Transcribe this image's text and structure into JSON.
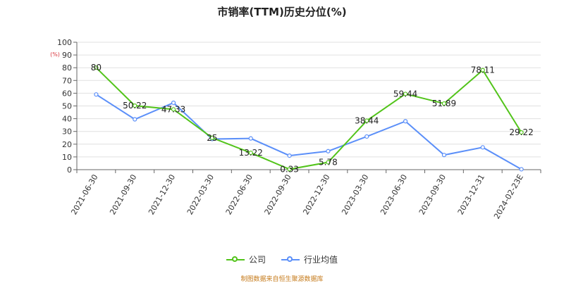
{
  "chart_data": {
    "type": "line",
    "title": "市销率(TTM)历史分位(%)",
    "y_unit": "(%)",
    "ylim": [
      0,
      100
    ],
    "ytick_step": 10,
    "grid": true,
    "legend_position": "bottom",
    "categories": [
      "2021-06-30",
      "2021-09-30",
      "2021-12-30",
      "2022-03-30",
      "2022-06-30",
      "2022-09-30",
      "2022-12-30",
      "2023-03-30",
      "2023-06-30",
      "2023-09-30",
      "2023-12-31",
      "2024-02-23E"
    ],
    "series": [
      {
        "name": "公司",
        "color": "#52c41a",
        "values": [
          80,
          50.22,
          47.33,
          25,
          13.22,
          0.33,
          5.78,
          38.44,
          59.44,
          51.89,
          78.11,
          29.22
        ],
        "labels": [
          "80",
          "50.22",
          "47.33",
          "25",
          "13.22",
          "0.33",
          "5.78",
          "38.44",
          "59.44",
          "51.89",
          "78.11",
          "29.22"
        ],
        "show_labels": true
      },
      {
        "name": "行业均值",
        "color": "#5b8ff9",
        "values": [
          59,
          39.5,
          52.5,
          24,
          24.5,
          11,
          14.5,
          26,
          38,
          11.5,
          17.5,
          0.3
        ],
        "show_labels": false
      }
    ]
  },
  "source_note": "制图数据来自恒生聚源数据库"
}
